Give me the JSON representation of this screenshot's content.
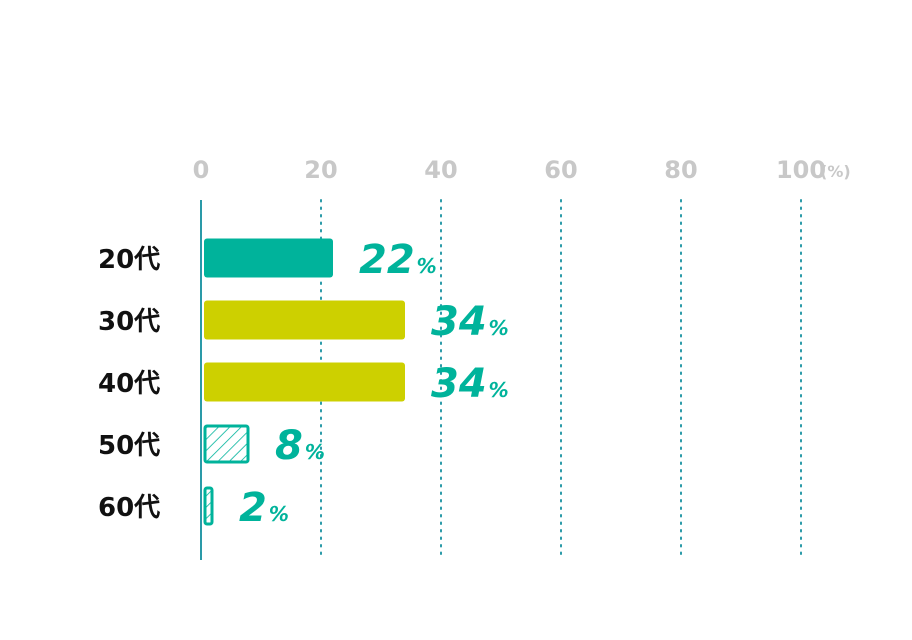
{
  "chart_data": {
    "type": "bar",
    "orientation": "horizontal",
    "categories": [
      "20代",
      "30代",
      "40代",
      "50代",
      "60代"
    ],
    "values": [
      22,
      34,
      34,
      8,
      2
    ],
    "value_labels": [
      "22",
      "34",
      "34",
      "8",
      "2"
    ],
    "value_suffix": "%",
    "xlim": [
      0,
      100
    ],
    "x_ticks": [
      "0",
      "20",
      "40",
      "60",
      "80",
      "100"
    ],
    "x_unit": "(%)",
    "grid": "vertical dotted",
    "bar_styles": [
      "solid-teal",
      "solid-olive",
      "solid-olive",
      "hatched-teal",
      "hatched-teal"
    ],
    "colors": {
      "teal": "#00b39b",
      "olive": "#cdd000",
      "axis": "#2a9aa8",
      "grid": "#2a9aa8",
      "tick_text": "#c8c8c8",
      "label_text": "#111111"
    }
  }
}
